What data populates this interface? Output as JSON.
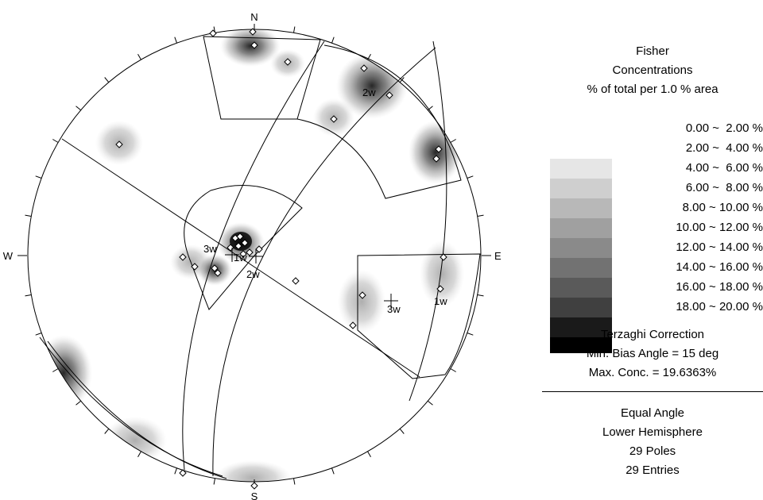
{
  "net": {
    "labels": {
      "n": "N",
      "e": "E",
      "s": "S",
      "w": "W"
    },
    "set_labels": [
      {
        "text": "2w"
      },
      {
        "text": "3w"
      },
      {
        "text": "1w"
      },
      {
        "text": "2w"
      },
      {
        "text": "3w"
      },
      {
        "text": "1w"
      }
    ]
  },
  "legend": {
    "title_lines": [
      "Fisher",
      "Concentrations",
      "% of total per 1.0 % area"
    ],
    "bins": [
      {
        "label": "0.00 ~  2.00 %",
        "color": "#ffffff"
      },
      {
        "label": "2.00 ~  4.00 %",
        "color": "#e6e6e6"
      },
      {
        "label": "4.00 ~  6.00 %",
        "color": "#cfcfcf"
      },
      {
        "label": "6.00 ~  8.00 %",
        "color": "#b8b8b8"
      },
      {
        "label": "8.00 ~ 10.00 %",
        "color": "#a0a0a0"
      },
      {
        "label": "10.00 ~ 12.00 %",
        "color": "#8a8a8a"
      },
      {
        "label": "12.00 ~ 14.00 %",
        "color": "#727272"
      },
      {
        "label": "14.00 ~ 16.00 %",
        "color": "#5a5a5a"
      },
      {
        "label": "16.00 ~ 18.00 %",
        "color": "#404040"
      },
      {
        "label": "18.00 ~ 20.00 %",
        "color": "#1a1a1a"
      },
      {
        "label": "",
        "color": "#000000"
      }
    ],
    "correction_lines": [
      "Terzaghi Correction",
      "Min. Bias Angle = 15 deg",
      "Max. Conc. = 19.6363%"
    ],
    "info_lines": [
      "Equal Angle",
      "Lower Hemisphere",
      "29 Poles",
      "29 Entries"
    ]
  }
}
